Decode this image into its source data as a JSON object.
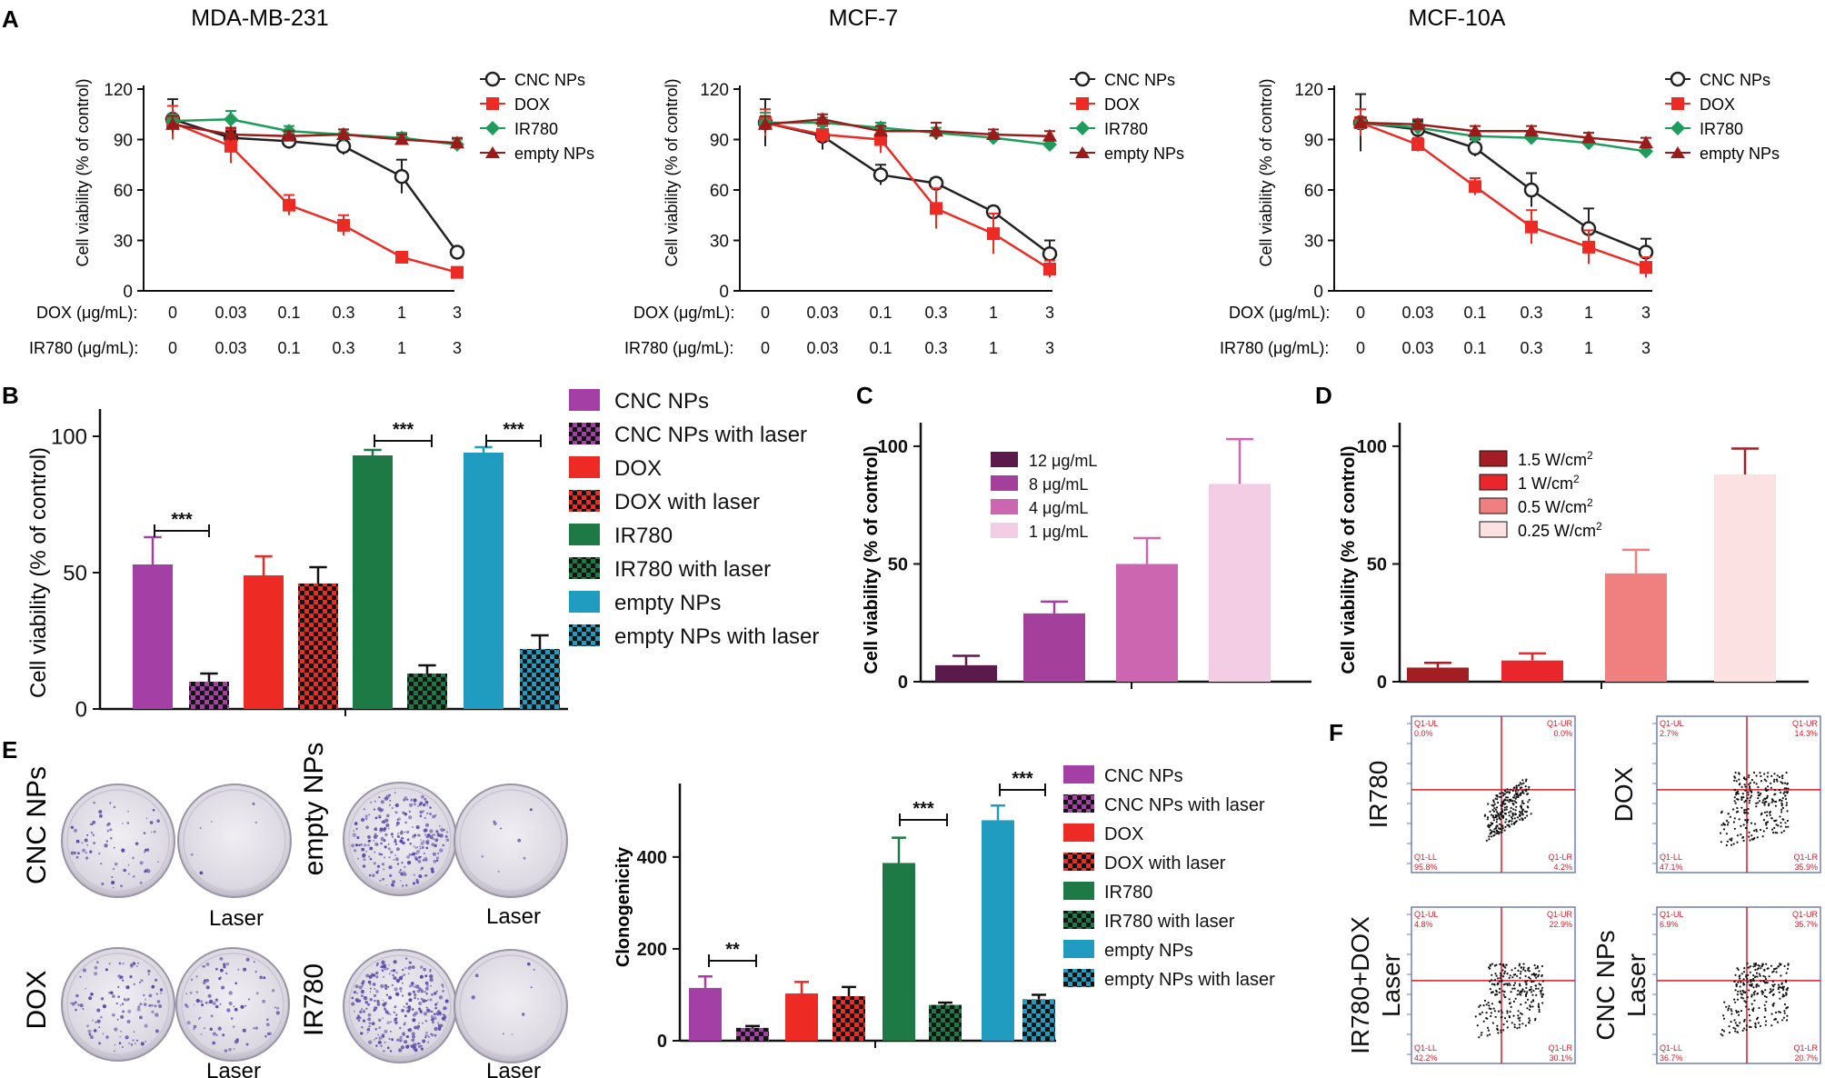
{
  "panel_letters": {
    "A": "A",
    "B": "B",
    "C": "C",
    "D": "D",
    "E": "E",
    "F": "F"
  },
  "colors": {
    "cnc": "#a43fa6",
    "dox": "#ee2a24",
    "ir780": "#1e7a45",
    "empty": "#1f9cc0",
    "line_cnc": "#222222",
    "line_dox": "#ee2a24",
    "line_ir780": "#1d9c5b",
    "line_empty": "#9b1b1b",
    "c1": "#5a1a4c",
    "c2": "#a43f9b",
    "c3": "#cc66b0",
    "c4": "#f3cde3",
    "d1": "#a31d23",
    "d2": "#e8262b",
    "d3": "#f08080",
    "d4": "#fbe1e1",
    "dish": "#e4e1ea",
    "colony": "#5b4aa6",
    "gate": "#d81b2a"
  },
  "panelA": {
    "row_labels": {
      "dox": "DOX (μg/mL):",
      "ir780": "IR780 (μg/mL):"
    },
    "conc_labels": [
      "0",
      "0.03",
      "0.1",
      "0.3",
      "1",
      "3"
    ],
    "legend": [
      "CNC NPs",
      "DOX",
      "IR780",
      "empty NPs"
    ]
  },
  "chart_data": [
    {
      "id": "A1",
      "type": "line",
      "title": "MDA-MB-231",
      "ylabel": "Cell viability (% of control)",
      "ylim": [
        0,
        120
      ],
      "yticks": [
        0,
        30,
        60,
        90,
        120
      ],
      "x": [
        "0",
        "0.03",
        "0.1",
        "0.3",
        "1",
        "3"
      ],
      "series": [
        {
          "name": "CNC NPs",
          "values": [
            102,
            91,
            89,
            86,
            68,
            23
          ],
          "errors": [
            12,
            4,
            4,
            5,
            10,
            3
          ]
        },
        {
          "name": "DOX",
          "values": [
            100,
            86,
            51,
            39,
            20,
            11
          ],
          "errors": [
            10,
            10,
            6,
            6,
            3,
            3
          ]
        },
        {
          "name": "IR780",
          "values": [
            101,
            102,
            95,
            93,
            91,
            87
          ],
          "errors": [
            4,
            5,
            3,
            3,
            3,
            3
          ]
        },
        {
          "name": "empty NPs",
          "values": [
            99,
            93,
            92,
            93,
            90,
            88
          ],
          "errors": [
            5,
            4,
            3,
            3,
            3,
            3
          ]
        }
      ]
    },
    {
      "id": "A2",
      "type": "line",
      "title": "MCF-7",
      "ylabel": "Cell viability (% of control)",
      "ylim": [
        0,
        120
      ],
      "yticks": [
        0,
        30,
        60,
        90,
        120
      ],
      "x": [
        "0",
        "0.03",
        "0.1",
        "0.3",
        "1",
        "3"
      ],
      "series": [
        {
          "name": "CNC NPs",
          "values": [
            100,
            92,
            69,
            64,
            47,
            22
          ],
          "errors": [
            14,
            8,
            6,
            3,
            3,
            8
          ]
        },
        {
          "name": "DOX",
          "values": [
            100,
            93,
            90,
            49,
            34,
            13
          ],
          "errors": [
            8,
            5,
            8,
            12,
            12,
            5
          ]
        },
        {
          "name": "IR780",
          "values": [
            100,
            100,
            97,
            94,
            91,
            87
          ],
          "errors": [
            6,
            3,
            3,
            3,
            3,
            3
          ]
        },
        {
          "name": "empty NPs",
          "values": [
            99,
            102,
            95,
            95,
            93,
            92
          ],
          "errors": [
            5,
            3,
            3,
            5,
            3,
            3
          ]
        }
      ]
    },
    {
      "id": "A3",
      "type": "line",
      "title": "MCF-10A",
      "ylabel": "Cell viability (% of control)",
      "ylim": [
        0,
        120
      ],
      "yticks": [
        0,
        30,
        60,
        90,
        120
      ],
      "x": [
        "0",
        "0.03",
        "0.1",
        "0.3",
        "1",
        "3"
      ],
      "series": [
        {
          "name": "CNC NPs",
          "values": [
            100,
            96,
            85,
            60,
            37,
            23
          ],
          "errors": [
            17,
            5,
            5,
            10,
            12,
            8
          ]
        },
        {
          "name": "DOX",
          "values": [
            100,
            87,
            62,
            38,
            26,
            14
          ],
          "errors": [
            8,
            4,
            5,
            10,
            10,
            6
          ]
        },
        {
          "name": "IR780",
          "values": [
            100,
            97,
            92,
            91,
            88,
            83
          ],
          "errors": [
            3,
            3,
            3,
            3,
            3,
            3
          ]
        },
        {
          "name": "empty NPs",
          "values": [
            100,
            99,
            95,
            95,
            91,
            88
          ],
          "errors": [
            3,
            3,
            3,
            3,
            3,
            3
          ]
        }
      ]
    },
    {
      "id": "B",
      "type": "bar",
      "ylabel": "Cell viability (% of control)",
      "ylim": [
        0,
        110
      ],
      "yticks": [
        0,
        50,
        100
      ],
      "categories": [
        "CNC NPs",
        "CNC NPs with laser",
        "DOX",
        "DOX with laser",
        "IR780",
        "IR780 with laser",
        "empty NPs",
        "empty NPs with laser"
      ],
      "values": [
        53,
        10,
        49,
        46,
        93,
        13,
        94,
        22
      ],
      "errors": [
        10,
        3,
        7,
        6,
        2,
        3,
        2,
        5
      ],
      "annotations": [
        "***",
        "***",
        "***"
      ]
    },
    {
      "id": "C",
      "type": "bar",
      "ylabel": "Cell viability (% of control)",
      "ylim": [
        0,
        110
      ],
      "yticks": [
        0,
        50,
        100
      ],
      "categories": [
        "12 μg/mL",
        "8 μg/mL",
        "4 μg/mL",
        "1 μg/mL"
      ],
      "values": [
        7,
        29,
        50,
        84
      ],
      "errors": [
        4,
        5,
        11,
        19
      ]
    },
    {
      "id": "D",
      "type": "bar",
      "ylabel": "Cell viability (% of control)",
      "ylim": [
        0,
        110
      ],
      "yticks": [
        0,
        50,
        100
      ],
      "categories": [
        "1.5 W/cm2",
        "1 W/cm2",
        "0.5 W/cm2",
        "0.25 W/cm2"
      ],
      "values": [
        6,
        9,
        46,
        88
      ],
      "errors": [
        2,
        3,
        10,
        11
      ]
    },
    {
      "id": "E",
      "type": "bar",
      "ylabel": "Clonogenicity",
      "ylim": [
        0,
        560
      ],
      "yticks": [
        0,
        200,
        400
      ],
      "categories": [
        "CNC NPs",
        "CNC NPs with laser",
        "DOX",
        "DOX with laser",
        "IR780",
        "IR780 with laser",
        "empty NPs",
        "empty NPs with laser"
      ],
      "values": [
        115,
        28,
        103,
        97,
        387,
        78,
        480,
        90
      ],
      "errors": [
        25,
        4,
        25,
        20,
        55,
        5,
        32,
        10
      ],
      "annotations": [
        "**",
        "***",
        "***"
      ]
    }
  ],
  "panelB_legend": [
    "CNC NPs",
    "CNC NPs with laser",
    "DOX",
    "DOX with laser",
    "IR780",
    "IR780 with laser",
    "empty NPs",
    "empty NPs with laser"
  ],
  "panelC_legend": [
    "12 μg/mL",
    "8 μg/mL",
    "4 μg/mL",
    "1 μg/mL"
  ],
  "panelD_legend": {
    "l1": "1.5 W/cm",
    "l2": "1 W/cm",
    "l3": "0.5 W/cm",
    "l4": "0.25 W/cm",
    "sup": "2"
  },
  "panelE": {
    "dish_labels": {
      "cnc": "CNC NPs",
      "empty": "empty NPs",
      "dox": "DOX",
      "ir780": "IR780",
      "laser": "Laser"
    },
    "legend": [
      "CNC NPs",
      "CNC NPs with laser",
      "DOX",
      "DOX with laser",
      "IR780",
      "IR780 with laser",
      "empty NPs",
      "empty NPs with laser"
    ]
  },
  "panelF": {
    "plots": [
      {
        "label": "IR780",
        "label2": "",
        "ul": "0.0%",
        "ur": "0.0%",
        "ll": "95.8%",
        "lr": "4.2%"
      },
      {
        "label": "DOX",
        "label2": "",
        "ul": "2.7%",
        "ur": "14.3%",
        "ll": "47.1%",
        "lr": "35.9%"
      },
      {
        "label": "IR780+DOX",
        "label2": "Laser",
        "ul": "4.8%",
        "ur": "22.9%",
        "ll": "42.2%",
        "lr": "30.1%"
      },
      {
        "label": "CNC NPs",
        "label2": "Laser",
        "ul": "6.9%",
        "ur": "35.7%",
        "ll": "36.7%",
        "lr": "20.7%"
      }
    ],
    "quad_names": {
      "ul": "Q1-UL",
      "ur": "Q1-UR",
      "ll": "Q1-LL",
      "lr": "Q1-LR"
    }
  }
}
